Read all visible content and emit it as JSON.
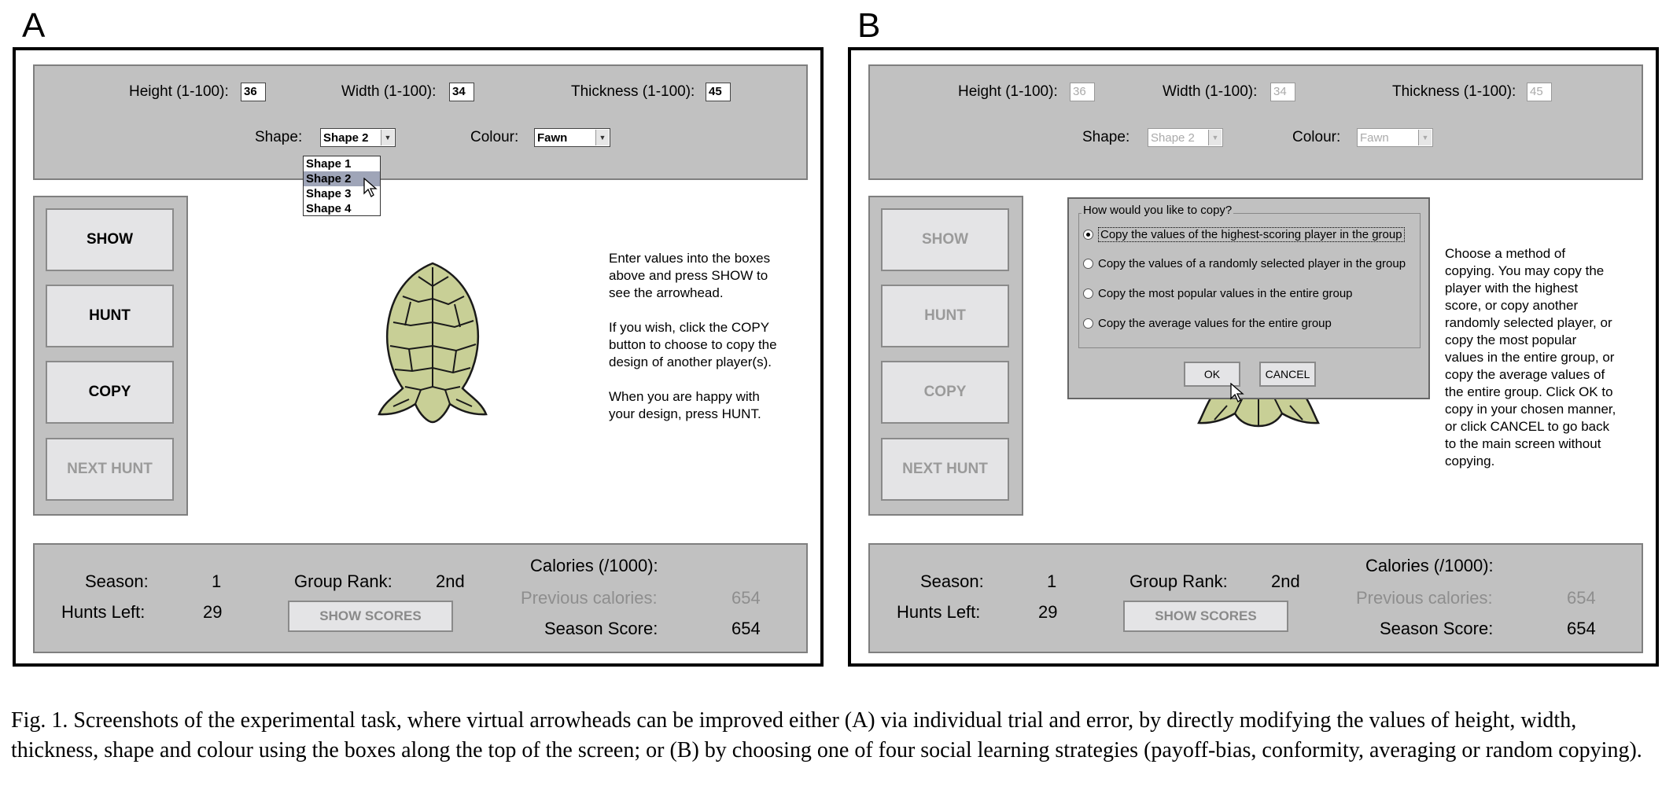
{
  "panels": {
    "a": {
      "letter": "A",
      "inputs": {
        "height_label": "Height (1-100):",
        "height_value": "36",
        "width_label": "Width (1-100):",
        "width_value": "34",
        "thickness_label": "Thickness (1-100):",
        "thickness_value": "45",
        "shape_label": "Shape:",
        "shape_value": "Shape 2",
        "colour_label": "Colour:",
        "colour_value": "Fawn"
      },
      "shape_options": [
        "Shape 1",
        "Shape 2",
        "Shape 3",
        "Shape 4"
      ],
      "buttons": {
        "show": "SHOW",
        "hunt": "HUNT",
        "copy": "COPY",
        "next_hunt": "NEXT HUNT"
      },
      "instructions": "Enter values into the boxes\nabove and press SHOW to\nsee the arrowhead.\n\nIf you wish, click the COPY\nbutton to choose to copy the\ndesign of another player(s).\n\nWhen you are happy with\nyour design, press HUNT.",
      "status": {
        "season_label": "Season:",
        "season_value": "1",
        "hunts_left_label": "Hunts Left:",
        "hunts_left_value": "29",
        "group_rank_label": "Group Rank:",
        "group_rank_value": "2nd",
        "show_scores": "SHOW SCORES",
        "calories_label": "Calories (/1000):",
        "previous_calories_label": "Previous calories:",
        "previous_calories_value": "654",
        "season_score_label": "Season Score:",
        "season_score_value": "654"
      }
    },
    "b": {
      "letter": "B",
      "inputs": {
        "height_label": "Height (1-100):",
        "height_value": "36",
        "width_label": "Width (1-100):",
        "width_value": "34",
        "thickness_label": "Thickness (1-100):",
        "thickness_value": "45",
        "shape_label": "Shape:",
        "shape_value": "Shape 2",
        "colour_label": "Colour:",
        "colour_value": "Fawn"
      },
      "buttons": {
        "show": "SHOW",
        "hunt": "HUNT",
        "copy": "COPY",
        "next_hunt": "NEXT HUNT"
      },
      "dialog": {
        "title": "How would you like to copy?",
        "options": [
          "Copy the values of the highest-scoring player in the group",
          "Copy the values of a randomly selected player in the group",
          "Copy the most popular values in the entire group",
          "Copy the average values for the entire group"
        ],
        "ok": "OK",
        "cancel": "CANCEL"
      },
      "instructions": "Choose a method of\ncopying. You may copy the\nplayer with the highest\nscore, or copy another\nrandomly selected player, or\ncopy the most popular\nvalues in the entire group, or\ncopy the average values of\nthe entire group. Click OK to\ncopy in your chosen manner,\nor click CANCEL to go back\nto the main screen without\ncopying.",
      "status": {
        "season_label": "Season:",
        "season_value": "1",
        "hunts_left_label": "Hunts Left:",
        "hunts_left_value": "29",
        "group_rank_label": "Group Rank:",
        "group_rank_value": "2nd",
        "show_scores": "SHOW SCORES",
        "calories_label": "Calories (/1000):",
        "previous_calories_label": "Previous calories:",
        "previous_calories_value": "654",
        "season_score_label": "Season Score:",
        "season_score_value": "654"
      }
    }
  },
  "colors": {
    "arrowhead_fill": "#c8cf96",
    "arrowhead_stroke": "#1a1a1a",
    "panel_gray": "#c1c1c1"
  },
  "caption": "Fig. 1. Screenshots of the experimental task, where virtual arrowheads can be improved either (A) via individual trial and error, by directly modifying the values of height, width, thickness, shape and colour using the boxes along the top of the screen; or (B) by choosing one of four social learning strategies (payoff-bias, conformity, averaging or random copying)."
}
